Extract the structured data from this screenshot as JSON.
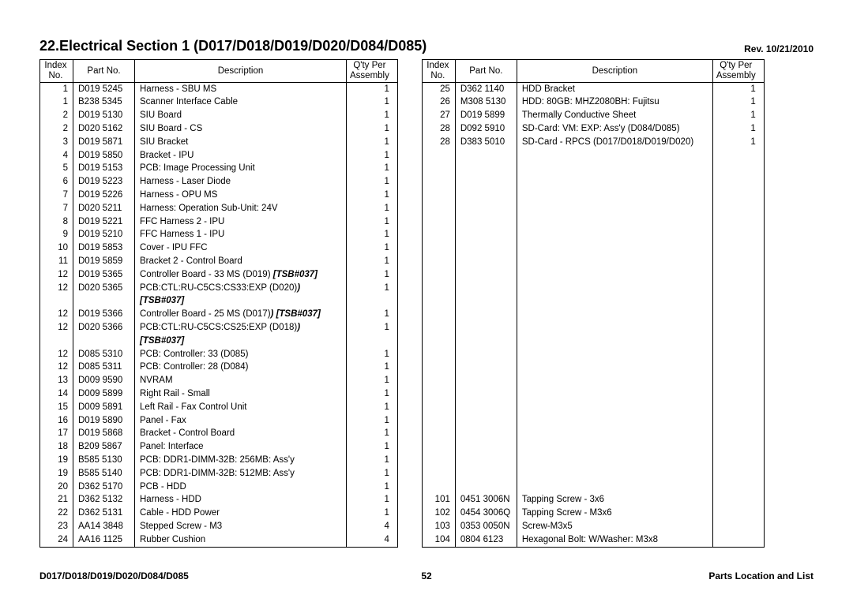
{
  "title": "22.Electrical Section 1 (D017/D018/D019/D020/D084/D085)",
  "rev": "Rev. 10/21/2010",
  "columns": {
    "index": "Index\nNo.",
    "part": "Part No.",
    "desc": "Description",
    "qty": "Q'ty Per\nAssembly"
  },
  "left_rows": [
    {
      "idx": "1",
      "part": "D019 5245",
      "desc": "Harness - SBU MS",
      "qty": "1"
    },
    {
      "idx": "1",
      "part": "B238 5345",
      "desc": "Scanner Interface Cable",
      "qty": "1"
    },
    {
      "idx": "2",
      "part": "D019 5130",
      "desc": "SIU Board",
      "qty": "1"
    },
    {
      "idx": "2",
      "part": "D020 5162",
      "desc": "SIU Board - CS",
      "qty": "1"
    },
    {
      "idx": "3",
      "part": "D019 5871",
      "desc": "SIU Bracket",
      "qty": "1"
    },
    {
      "idx": "4",
      "part": "D019 5850",
      "desc": "Bracket - IPU",
      "qty": "1"
    },
    {
      "idx": "5",
      "part": "D019 5153",
      "desc": "PCB: Image Processing Unit",
      "qty": "1"
    },
    {
      "idx": "6",
      "part": "D019 5223",
      "desc": "Harness - Laser Diode",
      "qty": "1"
    },
    {
      "idx": "7",
      "part": "D019 5226",
      "desc": "Harness - OPU MS",
      "qty": "1"
    },
    {
      "idx": "7",
      "part": "D020 5211",
      "desc": "Harness: Operation Sub-Unit: 24V",
      "qty": "1"
    },
    {
      "idx": "8",
      "part": "D019 5221",
      "desc": "FFC Harness 2 - IPU",
      "qty": "1"
    },
    {
      "idx": "9",
      "part": "D019 5210",
      "desc": "FFC Harness 1 - IPU",
      "qty": "1"
    },
    {
      "idx": "10",
      "part": "D019 5853",
      "desc": "Cover - IPU FFC",
      "qty": "1"
    },
    {
      "idx": "11",
      "part": "D019 5859",
      "desc": "Bracket 2 - Control Board",
      "qty": "1"
    },
    {
      "idx": "12",
      "part": "D019 5365",
      "desc": "Controller Board - 33 MS (D019)",
      "note": " [TSB#037]",
      "qty": "1"
    },
    {
      "idx": "12",
      "part": "D020 5365",
      "desc": "PCB:CTL:RU-C5CS:CS33:EXP (D020)",
      "note": ")",
      "qty": "1"
    },
    {
      "idx": "",
      "part": "",
      "desc": "",
      "note": "[TSB#037]",
      "qty": ""
    },
    {
      "idx": "12",
      "part": "D019 5366",
      "desc": "Controller Board - 25 MS (D017)",
      "note": ") [TSB#037]",
      "qty": "1"
    },
    {
      "idx": "12",
      "part": "D020 5366",
      "desc": "PCB:CTL:RU-C5CS:CS25:EXP (D018)",
      "note": ")",
      "qty": "1"
    },
    {
      "idx": "",
      "part": "",
      "desc": "",
      "note": "[TSB#037]",
      "qty": ""
    },
    {
      "idx": "12",
      "part": "D085 5310",
      "desc": "PCB: Controller: 33 (D085)",
      "qty": "1"
    },
    {
      "idx": "12",
      "part": "D085 5311",
      "desc": "PCB: Controller: 28 (D084)",
      "qty": "1"
    },
    {
      "idx": "13",
      "part": "D009 9590",
      "desc": "NVRAM",
      "qty": "1"
    },
    {
      "idx": "14",
      "part": "D009 5899",
      "desc": "Right Rail - Small",
      "qty": "1"
    },
    {
      "idx": "15",
      "part": "D009 5891",
      "desc": "Left Rail - Fax Control Unit",
      "qty": "1"
    },
    {
      "idx": "16",
      "part": "D019 5890",
      "desc": "Panel - Fax",
      "qty": "1"
    },
    {
      "idx": "17",
      "part": "D019 5868",
      "desc": "Bracket - Control Board",
      "qty": "1"
    },
    {
      "idx": "18",
      "part": "B209 5867",
      "desc": "Panel: Interface",
      "qty": "1"
    },
    {
      "idx": "19",
      "part": "B585 5130",
      "desc": "PCB: DDR1-DIMM-32B: 256MB: Ass'y",
      "qty": "1"
    },
    {
      "idx": "19",
      "part": "B585 5140",
      "desc": "PCB: DDR1-DIMM-32B: 512MB: Ass'y",
      "qty": "1"
    },
    {
      "idx": "20",
      "part": "D362 5170",
      "desc": "PCB - HDD",
      "qty": "1"
    },
    {
      "idx": "21",
      "part": "D362 5132",
      "desc": "Harness - HDD",
      "qty": "1"
    },
    {
      "idx": "22",
      "part": "D362 5131",
      "desc": "Cable - HDD Power",
      "qty": "1"
    },
    {
      "idx": "23",
      "part": "AA14 3848",
      "desc": "Stepped Screw - M3",
      "qty": "4"
    },
    {
      "idx": "24",
      "part": "AA16 1125",
      "desc": "Rubber Cushion",
      "qty": "4"
    }
  ],
  "right_rows": [
    {
      "idx": "25",
      "part": "D362 1140",
      "desc": "HDD Bracket",
      "qty": "1"
    },
    {
      "idx": "26",
      "part": "M308 5130",
      "desc": "HDD: 80GB: MHZ2080BH: Fujitsu",
      "qty": "1"
    },
    {
      "idx": "27",
      "part": "D019 5899",
      "desc": "Thermally Conductive Sheet",
      "qty": "1"
    },
    {
      "idx": "28",
      "part": "D092 5910",
      "desc": "SD-Card: VM: EXP: Ass'y (D084/D085)",
      "qty": "1"
    },
    {
      "idx": "28",
      "part": "D383 5010",
      "desc": "SD-Card - RPCS (D017/D018/D019/D020)",
      "qty": "1"
    },
    {
      "blank": true
    },
    {
      "blank": true
    },
    {
      "blank": true
    },
    {
      "blank": true
    },
    {
      "blank": true
    },
    {
      "blank": true
    },
    {
      "blank": true
    },
    {
      "blank": true
    },
    {
      "blank": true
    },
    {
      "blank": true
    },
    {
      "blank": true
    },
    {
      "blank": true
    },
    {
      "blank": true
    },
    {
      "blank": true
    },
    {
      "blank": true
    },
    {
      "blank": true
    },
    {
      "blank": true
    },
    {
      "blank": true
    },
    {
      "blank": true
    },
    {
      "blank": true
    },
    {
      "blank": true
    },
    {
      "blank": true
    },
    {
      "blank": true
    },
    {
      "blank": true
    },
    {
      "blank": true
    },
    {
      "blank": true
    },
    {
      "idx": "101",
      "part": "0451 3006N",
      "desc": "Tapping Screw - 3x6",
      "qty": ""
    },
    {
      "idx": "102",
      "part": "0454 3006Q",
      "desc": "Tapping Screw - M3x6",
      "qty": ""
    },
    {
      "idx": "103",
      "part": "0353 0050N",
      "desc": "Screw-M3x5",
      "qty": ""
    },
    {
      "idx": "104",
      "part": "0804 6123",
      "desc": "Hexagonal Bolt: W/Washer: M3x8",
      "qty": ""
    }
  ],
  "footer_left": "D017/D018/D019/D020/D084/D085",
  "footer_center": "52",
  "footer_right": "Parts Location and List"
}
